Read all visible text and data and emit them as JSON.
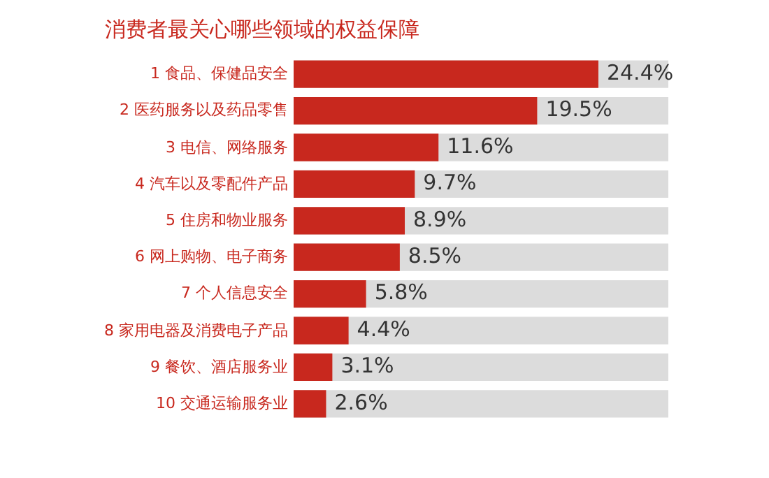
{
  "chart_data": {
    "type": "bar",
    "orientation": "horizontal",
    "title": "消费者最关心哪些领域的权益保障",
    "categories": [
      "1 食品、保健品安全",
      "2 医药服务以及药品零售",
      "3 电信、网络服务",
      "4 汽车以及零配件产品",
      "5 住房和物业服务",
      "6 网上购物、电子商务",
      "7 个人信息安全",
      "8 家用电器及消费电子产品",
      "9 餐饮、酒店服务业",
      "10 交通运输服务业"
    ],
    "values": [
      24.4,
      19.5,
      11.6,
      9.7,
      8.9,
      8.5,
      5.8,
      4.4,
      3.1,
      2.6
    ],
    "value_labels": [
      "24.4%",
      "19.5%",
      "11.6%",
      "9.7%",
      "8.9%",
      "8.5%",
      "5.8%",
      "4.4%",
      "3.1%",
      "2.6%"
    ],
    "color": "#c8281e",
    "legend": false,
    "tick_labels": "y"
  }
}
